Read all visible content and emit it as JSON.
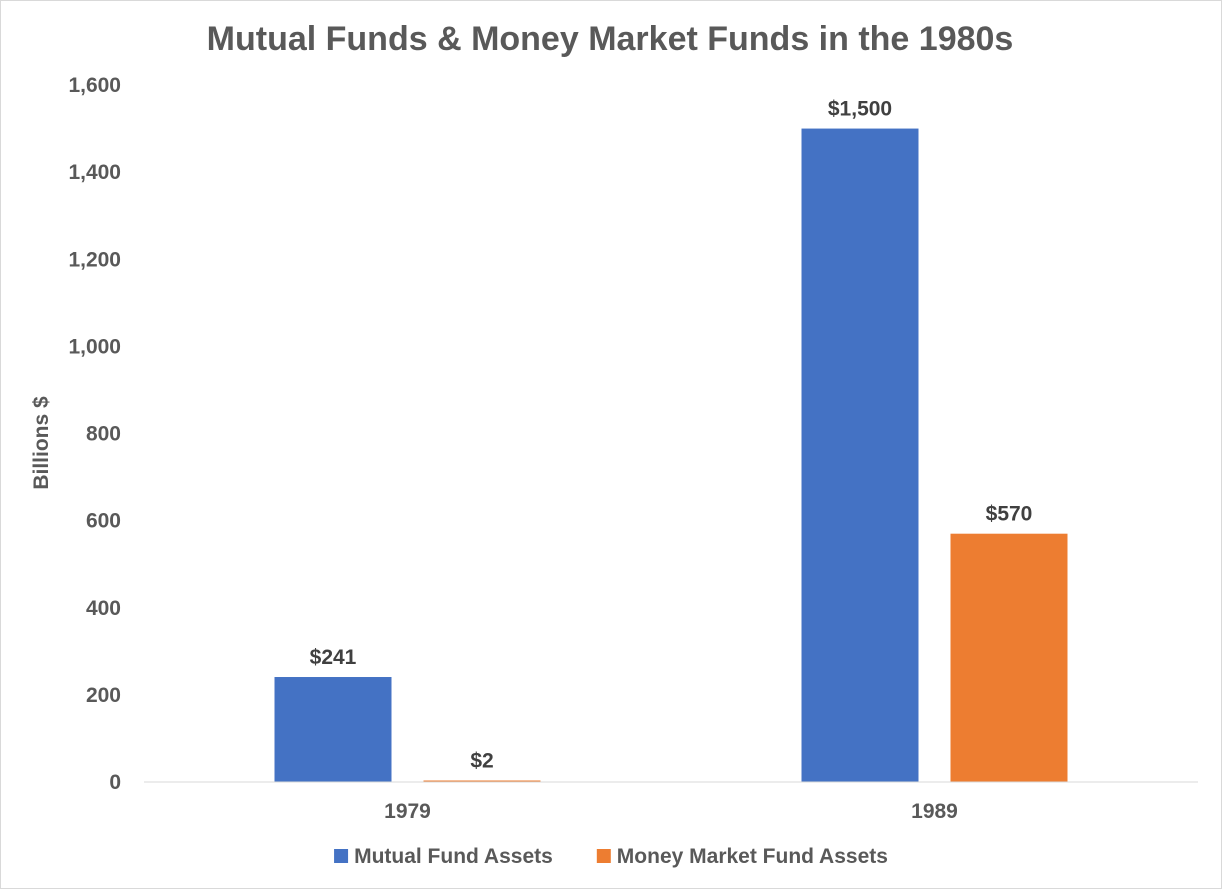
{
  "chart_data": {
    "type": "bar",
    "title": "Mutual Funds & Money Market Funds in the 1980s",
    "xlabel": "",
    "ylabel": "Billions $",
    "ylim": [
      0,
      1600
    ],
    "yticks": [
      0,
      200,
      400,
      600,
      800,
      1000,
      1200,
      1400,
      1600
    ],
    "ytick_labels": [
      "0",
      "200",
      "400",
      "600",
      "800",
      "1,000",
      "1,200",
      "1,400",
      "1,600"
    ],
    "categories": [
      "1979",
      "1989"
    ],
    "series": [
      {
        "name": "Mutual Fund Assets",
        "color": "#4472c4",
        "values": [
          241,
          1500
        ],
        "labels": [
          "$241",
          "$1,500"
        ]
      },
      {
        "name": "Money Market Fund Assets",
        "color": "#ed7d31",
        "values": [
          2,
          570
        ],
        "labels": [
          "$2",
          "$570"
        ]
      }
    ],
    "grid": false,
    "legend_position": "bottom"
  }
}
